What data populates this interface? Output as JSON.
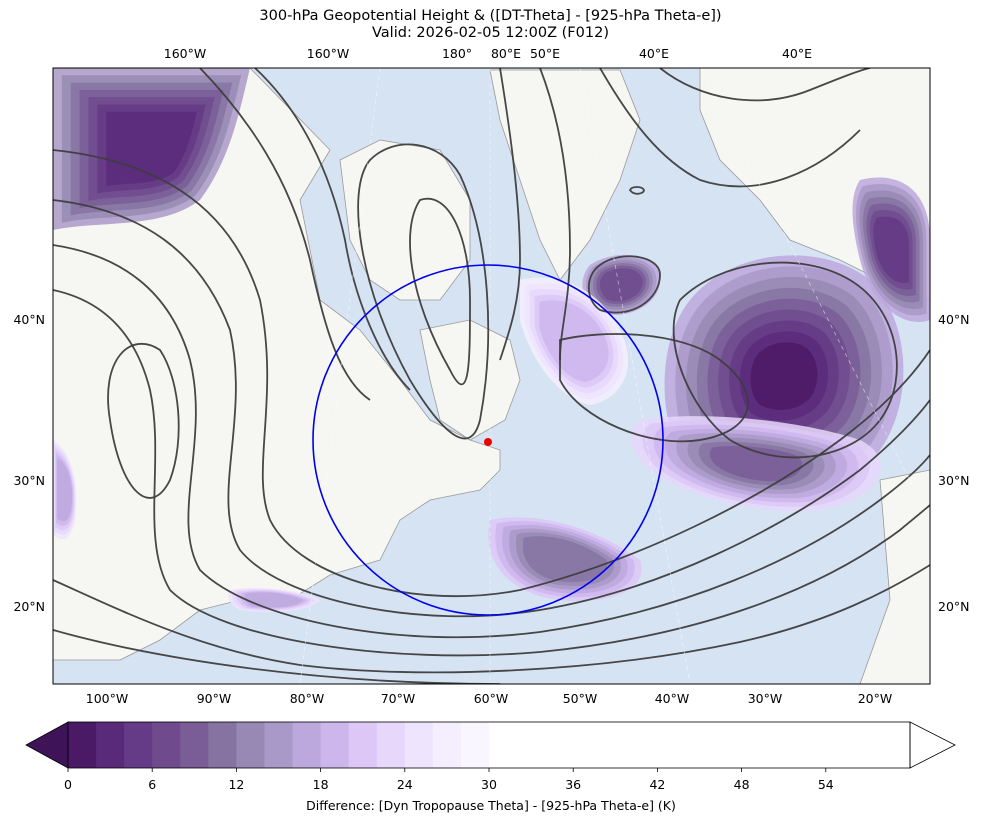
{
  "title_line1": "300-hPa Geopotential Height & ([DT-Theta] - [925-hPa Theta-e])",
  "title_line2": "Valid: 2026-02-05 12:00Z (F012)",
  "chart_data": {
    "type": "heatmap",
    "projection": "polar stereographic map",
    "top_lon_labels": [
      "160°W",
      "160°W",
      "180°",
      "80°E",
      "50°E",
      "40°E",
      "40°E"
    ],
    "bottom_lon_labels": [
      "100°W",
      "90°W",
      "80°W",
      "70°W",
      "60°W",
      "50°W",
      "40°W",
      "30°W",
      "20°W"
    ],
    "left_lat_labels": [
      "40°N",
      "30°N",
      "20°N"
    ],
    "right_lat_labels": [
      "40°N",
      "30°N",
      "20°N"
    ],
    "colorbar": {
      "label": "Difference: [Dyn Tropopause Theta] - [925-hPa Theta-e] (K)",
      "ticks": [
        0,
        6,
        12,
        18,
        24,
        30,
        36,
        42,
        48,
        54
      ],
      "levels": [
        0,
        2,
        4,
        6,
        8,
        10,
        12,
        14,
        16,
        18,
        20,
        22,
        24,
        26,
        28,
        30,
        60
      ],
      "extend": "both",
      "colors": [
        "#4b1a66",
        "#5a2a7a",
        "#653a86",
        "#6f4b8e",
        "#7a5c97",
        "#8673a2",
        "#9789b3",
        "#a999c8",
        "#bca8dc",
        "#ccb6ec",
        "#dcc7f6",
        "#e6d7fb",
        "#eee4fd",
        "#f4eefe",
        "#f9f6ff",
        "#ffffff"
      ],
      "under_color": "#3e1358",
      "over_color": "#ffffff"
    },
    "contours": "300-hPa geopotential height",
    "contour_color": "#3d3d3d",
    "circle_color": "#0000ee",
    "marker_color": "#ee0000",
    "land_color": "#f6f6f2",
    "ocean_color": "#d6e3f3"
  }
}
